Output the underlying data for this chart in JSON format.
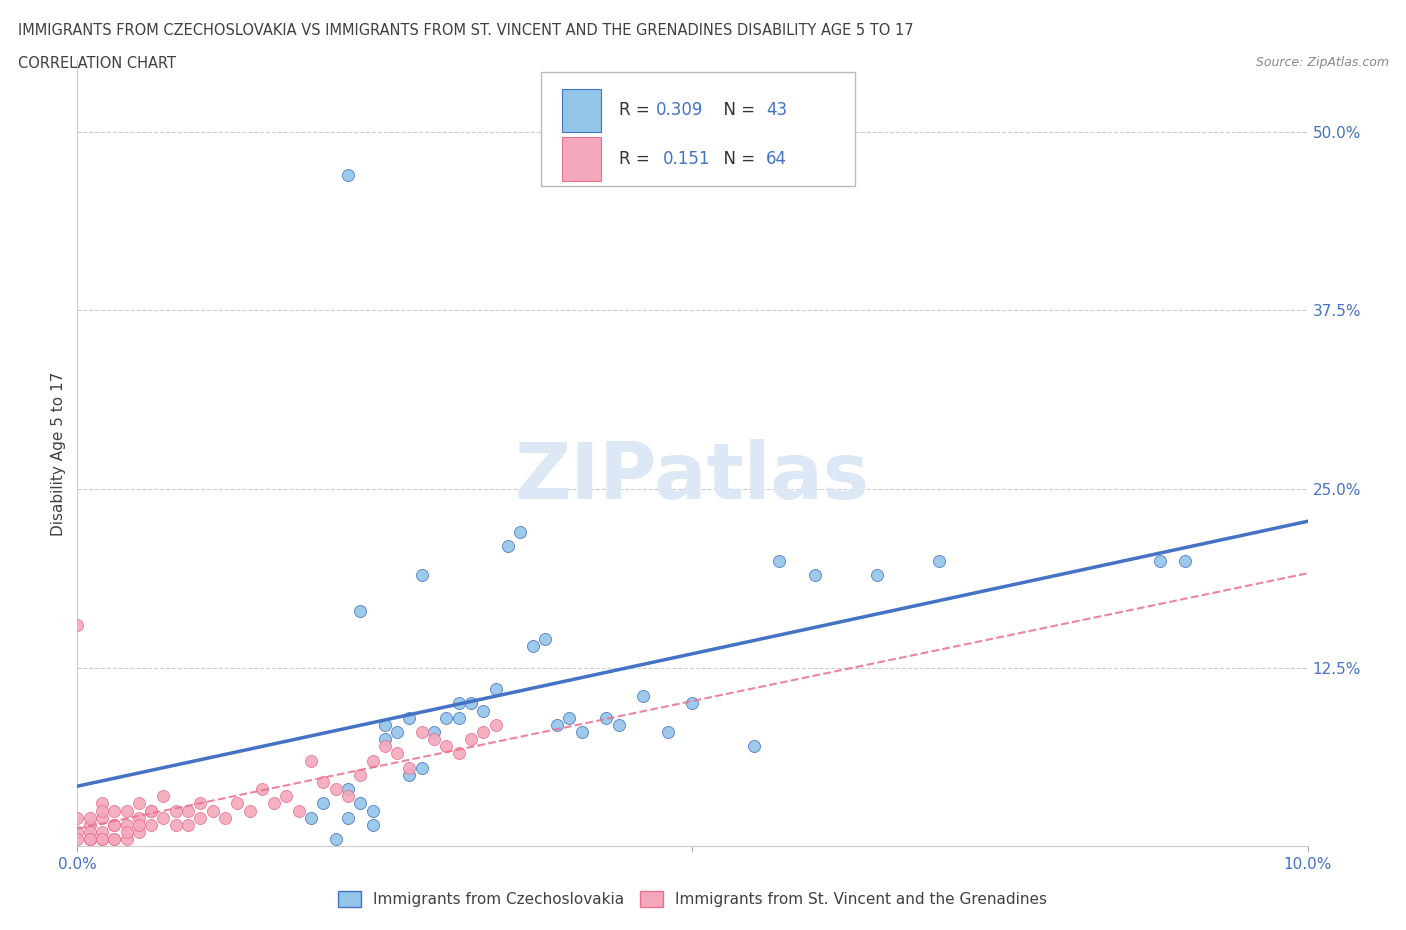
{
  "title_line1": "IMMIGRANTS FROM CZECHOSLOVAKIA VS IMMIGRANTS FROM ST. VINCENT AND THE GRENADINES DISABILITY AGE 5 TO 17",
  "title_line2": "CORRELATION CHART",
  "source_text": "Source: ZipAtlas.com",
  "ylabel": "Disability Age 5 to 17",
  "watermark": "ZIPatlas",
  "xlim": [
    0.0,
    0.1
  ],
  "ylim": [
    0.0,
    0.55
  ],
  "ytick_labels": [
    "12.5%",
    "25.0%",
    "37.5%",
    "50.0%"
  ],
  "ytick_vals": [
    0.125,
    0.25,
    0.375,
    0.5
  ],
  "color_blue": "#92C5E8",
  "color_pink": "#F4A8BC",
  "line_blue": "#4472C4",
  "line_pink": "#E87090",
  "axis_color": "#4472C4",
  "background_color": "#FFFFFF",
  "blue_x": [
    0.022,
    0.021,
    0.022,
    0.022,
    0.023,
    0.024,
    0.024,
    0.025,
    0.026,
    0.027,
    0.027,
    0.028,
    0.028,
    0.029,
    0.03,
    0.031,
    0.031,
    0.032,
    0.033,
    0.034,
    0.035,
    0.036,
    0.037,
    0.038,
    0.039,
    0.04,
    0.041,
    0.043,
    0.044,
    0.046,
    0.048,
    0.05,
    0.055,
    0.057,
    0.06,
    0.065,
    0.07,
    0.088,
    0.09,
    0.019,
    0.02,
    0.025,
    0.023
  ],
  "blue_y": [
    0.47,
    0.005,
    0.02,
    0.04,
    0.03,
    0.025,
    0.015,
    0.085,
    0.08,
    0.05,
    0.09,
    0.055,
    0.19,
    0.08,
    0.09,
    0.09,
    0.1,
    0.1,
    0.095,
    0.11,
    0.21,
    0.22,
    0.14,
    0.145,
    0.085,
    0.09,
    0.08,
    0.09,
    0.085,
    0.105,
    0.08,
    0.1,
    0.07,
    0.2,
    0.19,
    0.19,
    0.2,
    0.2,
    0.2,
    0.02,
    0.03,
    0.075,
    0.165
  ],
  "pink_x": [
    0.0,
    0.0,
    0.0,
    0.001,
    0.001,
    0.001,
    0.001,
    0.002,
    0.002,
    0.002,
    0.002,
    0.003,
    0.003,
    0.003,
    0.004,
    0.004,
    0.004,
    0.005,
    0.005,
    0.005,
    0.006,
    0.006,
    0.007,
    0.007,
    0.008,
    0.008,
    0.009,
    0.009,
    0.01,
    0.01,
    0.011,
    0.012,
    0.013,
    0.014,
    0.015,
    0.016,
    0.017,
    0.018,
    0.019,
    0.02,
    0.021,
    0.022,
    0.023,
    0.024,
    0.025,
    0.026,
    0.027,
    0.028,
    0.029,
    0.03,
    0.031,
    0.032,
    0.033,
    0.034,
    0.001,
    0.002,
    0.003,
    0.004,
    0.005,
    0.006,
    0.0,
    0.001,
    0.002,
    0.003
  ],
  "pink_y": [
    0.01,
    0.02,
    0.005,
    0.015,
    0.01,
    0.02,
    0.005,
    0.03,
    0.01,
    0.02,
    0.005,
    0.025,
    0.015,
    0.005,
    0.025,
    0.015,
    0.005,
    0.03,
    0.02,
    0.01,
    0.025,
    0.015,
    0.035,
    0.02,
    0.025,
    0.015,
    0.015,
    0.025,
    0.03,
    0.02,
    0.025,
    0.02,
    0.03,
    0.025,
    0.04,
    0.03,
    0.035,
    0.025,
    0.06,
    0.045,
    0.04,
    0.035,
    0.05,
    0.06,
    0.07,
    0.065,
    0.055,
    0.08,
    0.075,
    0.07,
    0.065,
    0.075,
    0.08,
    0.085,
    0.005,
    0.025,
    0.015,
    0.01,
    0.015,
    0.025,
    0.155,
    0.005,
    0.005,
    0.005
  ],
  "legend_label_blue": "Immigrants from Czechoslovakia",
  "legend_label_pink": "Immigrants from St. Vincent and the Grenadines"
}
